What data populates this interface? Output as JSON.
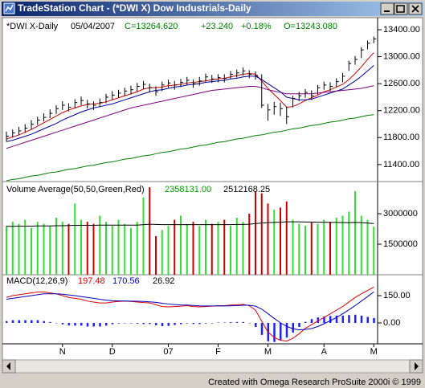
{
  "window": {
    "title": "TradeStation Chart - (*DWI X) Dow Industrials-Daily"
  },
  "footer": "Created with Omega Research ProSuite 2000i © 1999",
  "chart_data": [
    {
      "type": "ohlc",
      "header": [
        {
          "text": "*DWI X-Daily",
          "color": "#000000"
        },
        {
          "text": "05/04/2007",
          "color": "#000000"
        },
        {
          "text": "C=13264.620",
          "color": "#008000"
        },
        {
          "text": "+23.240",
          "color": "#008000"
        },
        {
          "text": "+0.18%",
          "color": "#008000"
        },
        {
          "text": "O=13243.080",
          "color": "#008000"
        }
      ],
      "color": "#000000",
      "high": [
        11890,
        11920,
        11960,
        12000,
        12060,
        12110,
        12160,
        12220,
        12280,
        12340,
        12310,
        12370,
        12410,
        12360,
        12340,
        12380,
        12450,
        12490,
        12510,
        12540,
        12570,
        12610,
        12640,
        12600,
        12560,
        12630,
        12660,
        12640,
        12670,
        12700,
        12660,
        12700,
        12750,
        12730,
        12740,
        12740,
        12790,
        12810,
        12840,
        12800,
        12780,
        12740,
        12300,
        12330,
        12320,
        12260,
        12420,
        12480,
        12520,
        12500,
        12580,
        12630,
        12620,
        12680,
        12760,
        12940,
        13010,
        13140,
        13240,
        13300
      ],
      "low": [
        11740,
        11800,
        11840,
        11870,
        11920,
        11990,
        12040,
        12090,
        12150,
        12210,
        12190,
        12240,
        12280,
        12230,
        12210,
        12250,
        12310,
        12360,
        12390,
        12420,
        12440,
        12480,
        12520,
        12470,
        12420,
        12490,
        12540,
        12510,
        12550,
        12580,
        12540,
        12570,
        12630,
        12610,
        12620,
        12620,
        12670,
        12690,
        12720,
        12680,
        12660,
        12240,
        12050,
        12140,
        12120,
        12000,
        12250,
        12340,
        12390,
        12360,
        12440,
        12510,
        12490,
        12550,
        12620,
        12790,
        12880,
        12980,
        13110,
        13200
      ],
      "close": [
        11820,
        11870,
        11900,
        11940,
        12000,
        12060,
        12100,
        12160,
        12230,
        12280,
        12250,
        12320,
        12350,
        12300,
        12280,
        12320,
        12400,
        12430,
        12460,
        12490,
        12510,
        12560,
        12590,
        12540,
        12480,
        12580,
        12610,
        12580,
        12620,
        12650,
        12600,
        12640,
        12700,
        12670,
        12690,
        12680,
        12740,
        12760,
        12790,
        12740,
        12720,
        12280,
        12210,
        12260,
        12230,
        12110,
        12380,
        12420,
        12470,
        12420,
        12540,
        12580,
        12560,
        12630,
        12710,
        12900,
        12960,
        13100,
        13200,
        13264.62
      ],
      "series": [
        {
          "color": "#d00000",
          "values": [
            11780,
            11810,
            11840,
            11880,
            11920,
            11970,
            12020,
            12070,
            12120,
            12170,
            12210,
            12240,
            12270,
            12290,
            12300,
            12310,
            12330,
            12360,
            12390,
            12420,
            12450,
            12480,
            12520,
            12540,
            12540,
            12550,
            12570,
            12580,
            12590,
            12610,
            12620,
            12630,
            12640,
            12660,
            12670,
            12680,
            12700,
            12720,
            12740,
            12750,
            12740,
            12640,
            12530,
            12440,
            12350,
            12250,
            12260,
            12300,
            12350,
            12390,
            12430,
            12480,
            12510,
            12550,
            12590,
            12660,
            12750,
            12850,
            12960,
            13060
          ]
        },
        {
          "color": "#0000a0",
          "values": [
            11740,
            11760,
            11790,
            11820,
            11850,
            11890,
            11930,
            11970,
            12010,
            12060,
            12100,
            12140,
            12180,
            12210,
            12240,
            12260,
            12280,
            12300,
            12330,
            12360,
            12390,
            12420,
            12450,
            12480,
            12500,
            12510,
            12530,
            12550,
            12560,
            12580,
            12590,
            12600,
            12620,
            12630,
            12640,
            12650,
            12670,
            12680,
            12700,
            12710,
            12710,
            12660,
            12600,
            12540,
            12480,
            12400,
            12380,
            12360,
            12360,
            12370,
            12400,
            12430,
            12460,
            12490,
            12520,
            12580,
            12640,
            12710,
            12790,
            12870
          ]
        },
        {
          "color": "#800080",
          "values": [
            11640,
            11670,
            11700,
            11730,
            11760,
            11790,
            11820,
            11850,
            11880,
            11910,
            11940,
            11970,
            12000,
            12030,
            12060,
            12090,
            12120,
            12150,
            12180,
            12210,
            12240,
            12260,
            12280,
            12300,
            12320,
            12340,
            12360,
            12380,
            12400,
            12420,
            12440,
            12460,
            12480,
            12500,
            12510,
            12520,
            12530,
            12540,
            12550,
            12560,
            12560,
            12540,
            12510,
            12490,
            12470,
            12450,
            12450,
            12450,
            12450,
            12450,
            12460,
            12470,
            12480,
            12490,
            12500,
            12510,
            12520,
            12530,
            12550,
            12570
          ]
        },
        {
          "color": "#008000",
          "values": [
            11160,
            11180,
            11190,
            11210,
            11230,
            11240,
            11260,
            11280,
            11290,
            11310,
            11330,
            11340,
            11360,
            11380,
            11390,
            11410,
            11430,
            11440,
            11460,
            11480,
            11490,
            11510,
            11530,
            11540,
            11560,
            11580,
            11590,
            11610,
            11630,
            11640,
            11660,
            11680,
            11690,
            11710,
            11730,
            11740,
            11760,
            11780,
            11790,
            11810,
            11830,
            11840,
            11860,
            11880,
            11890,
            11910,
            11930,
            11940,
            11960,
            11980,
            11990,
            12010,
            12030,
            12040,
            12060,
            12080,
            12090,
            12110,
            12130,
            12140
          ]
        }
      ],
      "ylim": [
        11160,
        13555
      ],
      "yticks": [
        {
          "value": 11400,
          "label": "11400.00"
        },
        {
          "value": 11800,
          "label": "11800.00"
        },
        {
          "value": 12200,
          "label": "12200.00"
        },
        {
          "value": 12600,
          "label": "12600.00"
        },
        {
          "value": 13000,
          "label": "13000.00"
        },
        {
          "value": 13400,
          "label": "13400.00"
        }
      ]
    },
    {
      "type": "bar",
      "legend": [
        {
          "text": "Volume Average(50,50,Green,Red)",
          "color": "#000000"
        },
        {
          "text": "2358131.00",
          "color": "#00a000"
        },
        {
          "text": "2512168.25",
          "color": "#000000"
        }
      ],
      "values": [
        2400000,
        2600000,
        2500000,
        2700000,
        2300000,
        2600000,
        2500000,
        2400000,
        2800000,
        2600000,
        2500000,
        3500000,
        2700000,
        2600000,
        2500000,
        2900000,
        2600000,
        2400000,
        2700000,
        2500000,
        2300000,
        2600000,
        3800000,
        4300000,
        1900000,
        2200000,
        2400000,
        2700000,
        2900000,
        2500000,
        2600000,
        2400000,
        2700000,
        2500000,
        2600000,
        2700000,
        2400000,
        2800000,
        2600000,
        3000000,
        4100000,
        4000000,
        3500000,
        3200000,
        3300000,
        3600000,
        2700000,
        2500000,
        2400000,
        2600000,
        2500000,
        2700000,
        2600000,
        2800000,
        2900000,
        3100000,
        4100000,
        2900000,
        2700000,
        2358131
      ],
      "up_color": "#33dd33",
      "down_color": "#cc0000",
      "average": {
        "color": "#000000",
        "values": [
          2380000,
          2380000,
          2390000,
          2390000,
          2390000,
          2400000,
          2400000,
          2400000,
          2410000,
          2410000,
          2420000,
          2430000,
          2430000,
          2430000,
          2430000,
          2440000,
          2440000,
          2440000,
          2440000,
          2440000,
          2440000,
          2440000,
          2460000,
          2480000,
          2470000,
          2460000,
          2460000,
          2460000,
          2460000,
          2460000,
          2460000,
          2460000,
          2460000,
          2460000,
          2460000,
          2460000,
          2460000,
          2470000,
          2470000,
          2480000,
          2510000,
          2540000,
          2560000,
          2570000,
          2580000,
          2600000,
          2600000,
          2600000,
          2590000,
          2590000,
          2580000,
          2580000,
          2570000,
          2570000,
          2560000,
          2560000,
          2570000,
          2560000,
          2540000,
          2512168.25
        ]
      },
      "ylim": [
        0,
        4500000
      ],
      "yticks": [
        1500000,
        3000000
      ]
    },
    {
      "type": "line",
      "legend": [
        {
          "text": "MACD(12,26,9)",
          "color": "#000000"
        },
        {
          "text": "197.48",
          "color": "#e00000"
        },
        {
          "text": "170.56",
          "color": "#0000c0"
        },
        {
          "text": "26.92",
          "color": "#000000"
        }
      ],
      "categories": [
        null,
        null,
        null,
        null,
        null,
        null,
        null,
        null,
        null,
        "N",
        null,
        null,
        null,
        null,
        null,
        null,
        null,
        "D",
        null,
        null,
        null,
        null,
        null,
        null,
        null,
        null,
        "07",
        null,
        null,
        null,
        null,
        null,
        null,
        null,
        "F",
        null,
        null,
        null,
        null,
        null,
        null,
        null,
        "M",
        null,
        null,
        null,
        null,
        null,
        null,
        null,
        null,
        "A",
        null,
        null,
        null,
        null,
        null,
        null,
        null,
        "M"
      ],
      "series": [
        {
          "color": "#e00000",
          "values": [
            140,
            150,
            155,
            160,
            165,
            170,
            170,
            165,
            160,
            150,
            140,
            135,
            130,
            120,
            115,
            110,
            110,
            115,
            118,
            120,
            118,
            115,
            112,
            110,
            100,
            90,
            88,
            90,
            92,
            95,
            90,
            88,
            90,
            92,
            95,
            95,
            98,
            100,
            102,
            95,
            70,
            10,
            -50,
            -80,
            -95,
            -100,
            -85,
            -60,
            -30,
            -10,
            10,
            30,
            50,
            70,
            90,
            115,
            140,
            160,
            178,
            197.48
          ]
        },
        {
          "color": "#0000c0",
          "values": [
            130,
            135,
            140,
            145,
            150,
            155,
            160,
            160,
            160,
            158,
            154,
            150,
            145,
            140,
            135,
            130,
            125,
            122,
            121,
            121,
            120,
            119,
            118,
            116,
            113,
            108,
            104,
            101,
            99,
            98,
            96,
            94,
            93,
            93,
            93,
            93,
            94,
            95,
            97,
            97,
            92,
            76,
            51,
            25,
            1,
            -19,
            -32,
            -38,
            -36,
            -31,
            -20,
            -5,
            12,
            30,
            50,
            72,
            95,
            120,
            145,
            170.56
          ]
        }
      ],
      "histogram": {
        "color": "#2020ff",
        "values": [
          10,
          15,
          15,
          15,
          15,
          15,
          10,
          5,
          0,
          -8,
          -14,
          -15,
          -15,
          -20,
          -20,
          -20,
          -15,
          -7,
          -3,
          -1,
          -2,
          -4,
          -6,
          -6,
          -13,
          -18,
          -16,
          -11,
          -7,
          -3,
          -6,
          -6,
          -3,
          -1,
          2,
          2,
          4,
          5,
          5,
          -2,
          -22,
          -66,
          -101,
          -105,
          -96,
          -81,
          -53,
          -22,
          6,
          21,
          30,
          35,
          38,
          40,
          40,
          43,
          45,
          40,
          33,
          26.92
        ]
      },
      "ylim": [
        -115,
        265
      ],
      "yticks": [
        {
          "value": 0,
          "label": "0.00"
        },
        {
          "value": 150,
          "label": "150.00"
        }
      ]
    }
  ]
}
